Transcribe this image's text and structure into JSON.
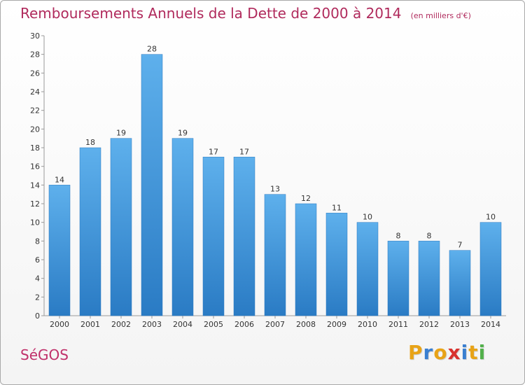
{
  "chart_data": {
    "type": "bar",
    "title": "Remboursements Annuels de la Dette de 2000 à 2014",
    "subtitle": "(en milliers d'€)",
    "categories": [
      "2000",
      "2001",
      "2002",
      "2003",
      "2004",
      "2005",
      "2006",
      "2007",
      "2008",
      "2009",
      "2010",
      "2011",
      "2012",
      "2013",
      "2014"
    ],
    "values": [
      14,
      18,
      19,
      28,
      19,
      17,
      17,
      13,
      12,
      11,
      10,
      8,
      8,
      7,
      10
    ],
    "ylim": [
      0,
      30
    ],
    "yticks": [
      0,
      2,
      4,
      6,
      8,
      10,
      12,
      14,
      16,
      18,
      20,
      22,
      24,
      26,
      28,
      30
    ],
    "grid": false,
    "bar_color": "#3d8fd6"
  },
  "footer": {
    "commune": "SéGOS",
    "brand": [
      "P",
      "r",
      "o",
      "x",
      "i",
      "t",
      "i"
    ],
    "brand_colors": [
      "#e8a317",
      "#3a7fd0",
      "#e8a317",
      "#d8322e",
      "#3a7fd0",
      "#e8a317",
      "#52b04b"
    ]
  }
}
